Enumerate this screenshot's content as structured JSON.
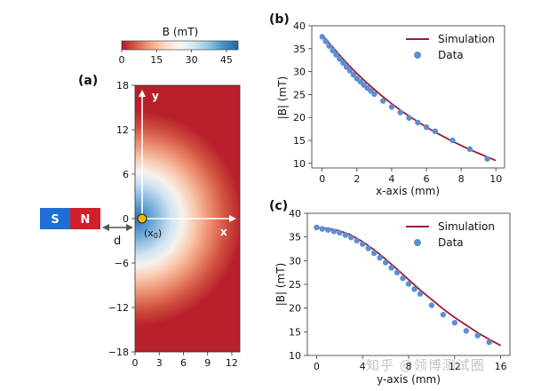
{
  "figure": {
    "colorbar": {
      "label": "B (mT)",
      "ticks": [
        "0",
        "15",
        "30",
        "45"
      ],
      "range": [
        0,
        50
      ],
      "colors": [
        "#b2182b",
        "#d6604d",
        "#f4a582",
        "#fddbc7",
        "#f7f7f7",
        "#d1e5f0",
        "#92c5de",
        "#4393c3",
        "#2166ac"
      ]
    },
    "panel_a": {
      "label": "(a)",
      "magnet": {
        "south": "S",
        "north": "N",
        "south_color": "#1f6fd6",
        "north_color": "#d0202a"
      },
      "gap_label": "d",
      "origin_label": "(x0)",
      "origin_main": "(x",
      "origin_sub": "0",
      "origin_close": ")",
      "x_axis_arrow_label": "x",
      "y_axis_arrow_label": "y",
      "x_ticks": [
        "0",
        "3",
        "6",
        "9",
        "12"
      ],
      "y_ticks": [
        "18",
        "12",
        "6",
        "0",
        "−6",
        "−12",
        "−18"
      ]
    },
    "watermark": "知乎 @领博测试圈"
  },
  "chart_data": [
    {
      "type": "line",
      "panel": "(b)",
      "xlabel": "x-axis (mm)",
      "ylabel": "|B| (mT)",
      "xlim": [
        -0.6,
        10.5
      ],
      "ylim": [
        9,
        40
      ],
      "x_ticks": [
        "0",
        "2",
        "4",
        "6",
        "8",
        "10"
      ],
      "y_ticks": [
        "10",
        "15",
        "20",
        "25",
        "30",
        "35",
        "40"
      ],
      "legend": {
        "position": "top-right",
        "simulation": "Simulation",
        "data": "Data"
      },
      "series": [
        {
          "name": "Simulation",
          "kind": "line",
          "color": "#9e1b32",
          "x": [
            0,
            0.5,
            1,
            1.5,
            2,
            2.5,
            3,
            3.5,
            4,
            4.5,
            5,
            5.5,
            6,
            6.5,
            7,
            7.5,
            8,
            8.5,
            9,
            9.5,
            10
          ],
          "values": [
            38.0,
            35.8,
            33.6,
            31.5,
            29.6,
            27.8,
            26.1,
            24.5,
            23.0,
            21.6,
            20.3,
            19.1,
            17.9,
            16.8,
            15.8,
            14.8,
            13.9,
            13.0,
            12.2,
            11.4,
            10.6
          ]
        },
        {
          "name": "Data",
          "kind": "scatter",
          "color": "#5b8fd1",
          "x": [
            0,
            0.2,
            0.4,
            0.6,
            0.8,
            1.0,
            1.2,
            1.4,
            1.6,
            1.8,
            2.0,
            2.2,
            2.4,
            2.6,
            2.8,
            3.0,
            3.5,
            4.0,
            4.5,
            5.0,
            5.5,
            6.0,
            6.5,
            7.5,
            8.5,
            9.5
          ],
          "values": [
            37.6,
            36.6,
            35.6,
            34.6,
            33.7,
            32.8,
            31.9,
            31.0,
            30.2,
            29.3,
            28.5,
            27.8,
            27.1,
            26.4,
            25.8,
            25.1,
            23.6,
            22.3,
            21.1,
            19.9,
            18.9,
            17.9,
            17.0,
            15.0,
            13.1,
            11.0
          ]
        }
      ]
    },
    {
      "type": "line",
      "panel": "(c)",
      "xlabel": "y-axis (mm)",
      "ylabel": "|B| (mT)",
      "xlim": [
        -0.8,
        16.8
      ],
      "ylim": [
        10,
        40
      ],
      "x_ticks": [
        "0",
        "4",
        "8",
        "12",
        "16"
      ],
      "y_ticks": [
        "10",
        "15",
        "20",
        "25",
        "30",
        "35",
        "40"
      ],
      "legend": {
        "position": "top-right",
        "simulation": "Simulation",
        "data": "Data"
      },
      "series": [
        {
          "name": "Simulation",
          "kind": "line",
          "color": "#9e1b32",
          "x": [
            0,
            1,
            2,
            3,
            4,
            5,
            6,
            7,
            8,
            9,
            10,
            11,
            12,
            13,
            14,
            15,
            16
          ],
          "values": [
            37.0,
            36.8,
            36.3,
            35.4,
            34.0,
            32.3,
            30.3,
            28.2,
            26.0,
            23.8,
            21.8,
            19.8,
            18.0,
            16.4,
            14.8,
            13.4,
            12.1
          ]
        },
        {
          "name": "Data",
          "kind": "scatter",
          "color": "#5b8fd1",
          "x": [
            0,
            0.5,
            1,
            1.5,
            2,
            2.5,
            3,
            3.5,
            4,
            4.5,
            5,
            5.5,
            6,
            6.5,
            7,
            7.5,
            8,
            8.5,
            9,
            10,
            11,
            12,
            13,
            14,
            15
          ],
          "values": [
            37.0,
            36.7,
            36.5,
            36.2,
            35.9,
            35.4,
            34.9,
            34.2,
            33.5,
            32.6,
            31.6,
            30.6,
            29.6,
            28.5,
            27.5,
            26.3,
            25.1,
            24.0,
            23.0,
            20.6,
            18.6,
            16.9,
            15.2,
            14.2,
            12.8
          ]
        }
      ]
    }
  ]
}
